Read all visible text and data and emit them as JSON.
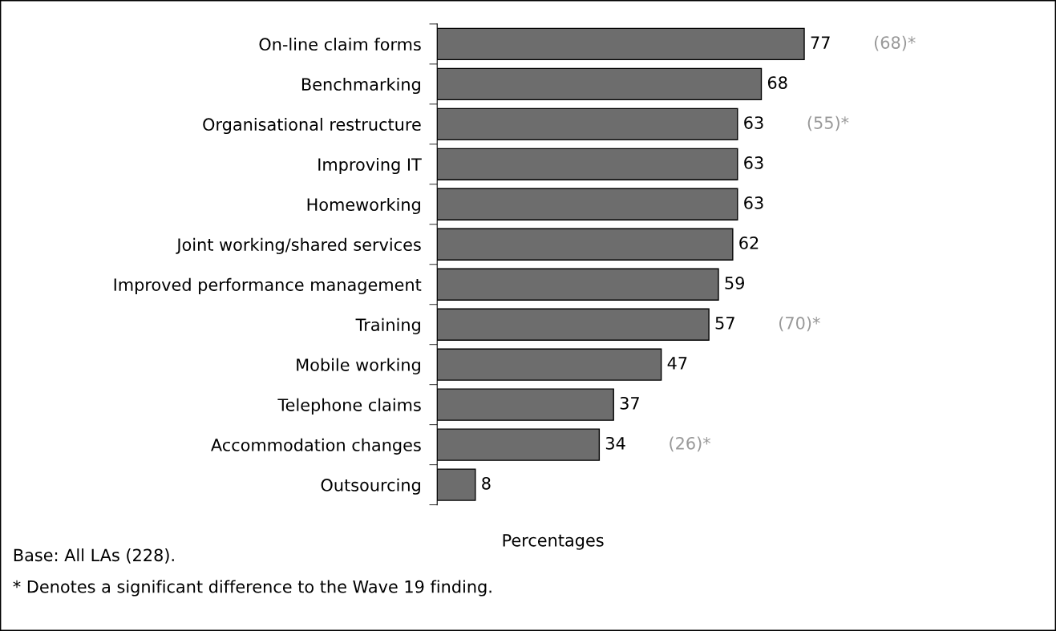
{
  "chart_data": {
    "type": "bar",
    "orientation": "horizontal",
    "xlabel": "Percentages",
    "categories": [
      "On-line claim forms",
      "Benchmarking",
      "Organisational restructure",
      "Improving IT",
      "Homeworking",
      "Joint working/shared services",
      "Improved performance management",
      "Training",
      "Mobile working",
      "Telephone claims",
      "Accommodation changes",
      "Outsourcing"
    ],
    "values": [
      77,
      68,
      63,
      63,
      63,
      62,
      59,
      57,
      47,
      37,
      34,
      8
    ],
    "color": "#6d6d6d",
    "data_labels": true,
    "grid": false,
    "legend": false,
    "annotations": [
      "(68)*",
      "(55)*",
      "(70)*",
      "(26)*",
      "Base: All LAs (228).",
      "* Denotes a significant difference to the Wave 19 finding."
    ]
  }
}
